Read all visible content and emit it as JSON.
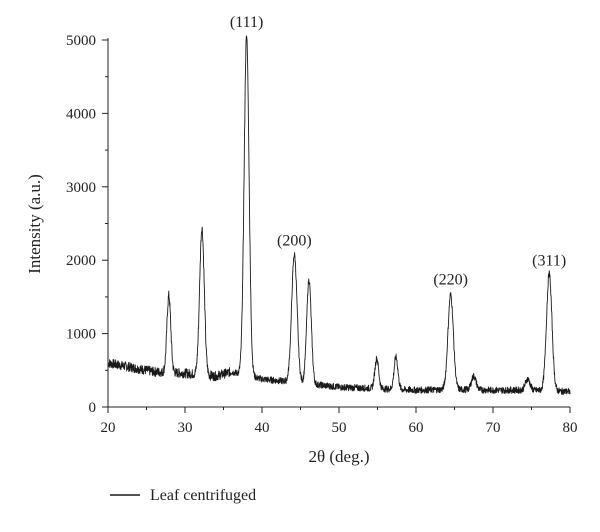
{
  "chart_data": {
    "type": "line",
    "xlabel": "2θ (deg.)",
    "ylabel": "Intensity (a.u.)",
    "xlim": [
      20,
      80
    ],
    "ylim": [
      0,
      5000
    ],
    "x_ticks": [
      20,
      30,
      40,
      50,
      60,
      70,
      80
    ],
    "y_ticks": [
      0,
      1000,
      2000,
      3000,
      4000,
      5000
    ],
    "grid": false,
    "legend_position": "bottom-left",
    "series": [
      {
        "name": "Leaf centrifuged",
        "color": "#1a1a1a",
        "baseline": [
          [
            20,
            600
          ],
          [
            26,
            480
          ],
          [
            30,
            460
          ],
          [
            34,
            420
          ],
          [
            36,
            480
          ],
          [
            40,
            380
          ],
          [
            45,
            330
          ],
          [
            50,
            270
          ],
          [
            55,
            250
          ],
          [
            60,
            230
          ],
          [
            65,
            240
          ],
          [
            70,
            230
          ],
          [
            75,
            230
          ],
          [
            80,
            210
          ]
        ],
        "peaks": [
          {
            "x": 27.9,
            "y": 1520,
            "width": 0.25
          },
          {
            "x": 32.2,
            "y": 2440,
            "width": 0.3
          },
          {
            "x": 38.0,
            "y": 5050,
            "width": 0.32
          },
          {
            "x": 44.2,
            "y": 2080,
            "width": 0.35
          },
          {
            "x": 46.1,
            "y": 1730,
            "width": 0.3
          },
          {
            "x": 54.9,
            "y": 660,
            "width": 0.25
          },
          {
            "x": 57.4,
            "y": 680,
            "width": 0.25
          },
          {
            "x": 64.5,
            "y": 1530,
            "width": 0.35
          },
          {
            "x": 67.5,
            "y": 420,
            "width": 0.3
          },
          {
            "x": 74.5,
            "y": 380,
            "width": 0.3
          },
          {
            "x": 77.3,
            "y": 1820,
            "width": 0.35
          }
        ]
      }
    ],
    "annotations": [
      {
        "text": "(111)",
        "x": 38.0,
        "y": 5180
      },
      {
        "text": "(200)",
        "x": 44.2,
        "y": 2200
      },
      {
        "text": "(220)",
        "x": 64.5,
        "y": 1670
      },
      {
        "text": "(311)",
        "x": 77.3,
        "y": 1930
      }
    ]
  }
}
